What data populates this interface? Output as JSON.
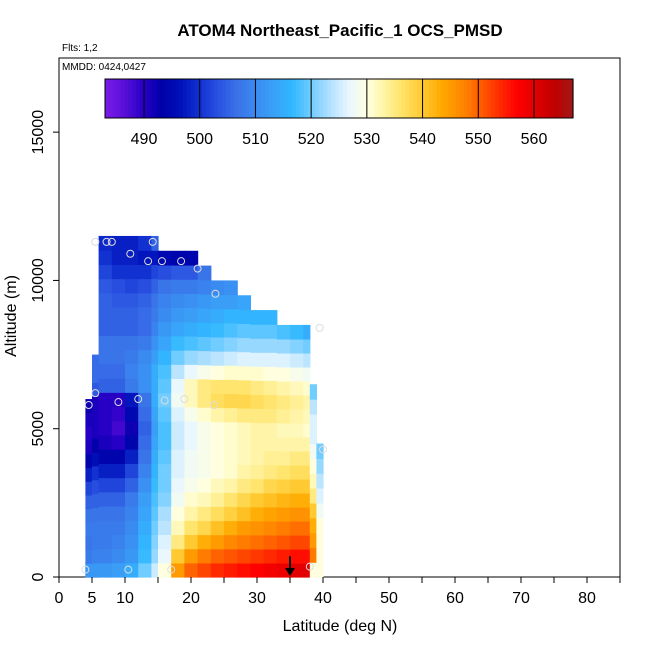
{
  "chart_data": {
    "type": "heatmap",
    "title": "ATOM4 Northeast_Pacific_1 OCS_PMSD",
    "flights_label": "Flts: 1,2",
    "mmdd_label": "MMDD: 0424,0427",
    "xlabel": "Latitude (deg N)",
    "ylabel": "Altitude (m)",
    "xlim": [
      0,
      85
    ],
    "ylim": [
      0,
      17500
    ],
    "x_ticks": [
      0,
      5,
      10,
      20,
      30,
      40,
      50,
      60,
      70,
      80
    ],
    "y_ticks": [
      0,
      5000,
      10000,
      15000
    ],
    "colorbar": {
      "range": [
        483,
        567
      ],
      "ticks": [
        490,
        500,
        510,
        520,
        530,
        540,
        550,
        560
      ],
      "colors": [
        "#7b1be8",
        "#5a10d8",
        "#2a00c8",
        "#0000a8",
        "#0010b8",
        "#1030d0",
        "#2850e0",
        "#3a70e8",
        "#3a8af0",
        "#3aa0f8",
        "#30b8ff",
        "#70ccff",
        "#b0e0ff",
        "#e8f6ff",
        "#ffffe0",
        "#fff3a0",
        "#ffe060",
        "#ffc830",
        "#ffa800",
        "#ff8a00",
        "#ff6000",
        "#ff3000",
        "#ff0000",
        "#e00000",
        "#c00000",
        "#a01818"
      ]
    },
    "grid_columns": [
      {
        "x0": 4,
        "x1": 6,
        "top": 500,
        "vals": [
          508
        ]
      },
      {
        "x0": 4,
        "x1": 5,
        "top": 6000,
        "vals": [
          512,
          508,
          507,
          508,
          507,
          505,
          502,
          498,
          494,
          491,
          490,
          491,
          492
        ]
      },
      {
        "x0": 5,
        "x1": 6,
        "top": 7500,
        "vals": [
          512,
          509,
          508,
          508,
          507,
          505,
          503,
          500,
          496,
          493,
          491,
          491,
          491,
          504,
          506,
          506
        ]
      },
      {
        "x0": 6,
        "x1": 8,
        "top": 11500,
        "vals": [
          512,
          509,
          508,
          508,
          507,
          505,
          502,
          498,
          494,
          491,
          490,
          490,
          490,
          505,
          506,
          507,
          507,
          505,
          505,
          505,
          504,
          502,
          500,
          499
        ]
      },
      {
        "x0": 8,
        "x1": 10,
        "top": 11500,
        "vals": [
          513,
          510,
          509,
          508,
          507,
          505,
          502,
          498,
          494,
          490,
          488,
          489,
          490,
          505,
          506,
          507,
          507,
          505,
          505,
          504,
          503,
          500,
          498,
          498
        ]
      },
      {
        "x0": 10,
        "x1": 12,
        "top": 11500,
        "vals": [
          515,
          512,
          511,
          510,
          509,
          508,
          505,
          502,
          498,
          494,
          492,
          495,
          497,
          508,
          509,
          508,
          507,
          505,
          505,
          504,
          502,
          500,
          498,
          498
        ]
      },
      {
        "x0": 12,
        "x1": 14,
        "top": 11500,
        "vals": [
          520,
          517,
          516,
          515,
          514,
          513,
          511,
          509,
          507,
          506,
          505,
          506,
          507,
          511,
          511,
          510,
          508,
          506,
          506,
          505,
          503,
          500,
          497,
          500
        ]
      },
      {
        "x0": 14,
        "x1": 15,
        "top": 11500,
        "vals": [
          525,
          522,
          521,
          520,
          519,
          518,
          517,
          516,
          515,
          514,
          513,
          514,
          515,
          515,
          515,
          513,
          511,
          509,
          508,
          507,
          505,
          502,
          497,
          505
        ]
      },
      {
        "x0": 15,
        "x1": 17,
        "top": 11000,
        "vals": [
          530,
          527,
          526,
          524,
          523,
          521,
          520,
          520,
          519,
          518,
          518,
          519,
          520,
          519,
          518,
          516,
          514,
          512,
          510,
          509,
          507,
          503,
          495
        ]
      },
      {
        "x0": 17,
        "x1": 19,
        "top": 11000,
        "vals": [
          545,
          540,
          535,
          532,
          530,
          528,
          527,
          526,
          526,
          525,
          525,
          526,
          528,
          527,
          524,
          520,
          517,
          514,
          512,
          510,
          508,
          504,
          494
        ]
      },
      {
        "x0": 19,
        "x1": 21,
        "top": 11000,
        "vals": [
          550,
          545,
          540,
          536,
          533,
          531,
          529,
          528,
          528,
          527,
          527,
          529,
          532,
          532,
          527,
          522,
          518,
          515,
          513,
          511,
          508,
          504,
          494
        ]
      },
      {
        "x0": 21,
        "x1": 23,
        "top": 10500,
        "vals": [
          552,
          548,
          543,
          538,
          535,
          532,
          530,
          529,
          529,
          529,
          529,
          531,
          535,
          535,
          529,
          523,
          519,
          516,
          514,
          512,
          509,
          507
        ]
      },
      {
        "x0": 23,
        "x1": 25,
        "top": 10000,
        "vals": [
          554,
          550,
          545,
          541,
          537,
          534,
          532,
          530,
          530,
          530,
          530,
          533,
          537,
          536,
          530,
          524,
          520,
          517,
          515,
          513,
          510
        ]
      },
      {
        "x0": 25,
        "x1": 27,
        "top": 10000,
        "vals": [
          555,
          551,
          547,
          543,
          539,
          536,
          533,
          531,
          531,
          531,
          531,
          534,
          538,
          536,
          531,
          525,
          521,
          518,
          516,
          513,
          511
        ]
      },
      {
        "x0": 27,
        "x1": 29,
        "top": 9500,
        "vals": [
          556,
          552,
          548,
          545,
          541,
          538,
          535,
          533,
          532,
          532,
          532,
          535,
          538,
          536,
          531,
          526,
          522,
          519,
          516,
          514
        ]
      },
      {
        "x0": 29,
        "x1": 31,
        "top": 9000,
        "vals": [
          557,
          553,
          549,
          546,
          543,
          540,
          536,
          534,
          533,
          533,
          533,
          535,
          537,
          535,
          531,
          526,
          522,
          519,
          516
        ]
      },
      {
        "x0": 31,
        "x1": 33,
        "top": 9000,
        "vals": [
          558,
          554,
          550,
          547,
          544,
          541,
          538,
          535,
          534,
          533,
          533,
          535,
          536,
          534,
          530,
          526,
          522,
          519,
          516
        ]
      },
      {
        "x0": 33,
        "x1": 35,
        "top": 8500,
        "vals": [
          559,
          555,
          551,
          548,
          545,
          542,
          539,
          536,
          534,
          533,
          532,
          534,
          535,
          533,
          530,
          526,
          522,
          518
        ]
      },
      {
        "x0": 35,
        "x1": 37,
        "top": 8500,
        "vals": [
          560,
          556,
          552,
          549,
          546,
          543,
          540,
          537,
          535,
          533,
          532,
          533,
          534,
          532,
          529,
          525,
          521,
          517
        ]
      },
      {
        "x0": 37,
        "x1": 38,
        "top": 8500,
        "vals": [
          560,
          556,
          552,
          549,
          546,
          543,
          540,
          537,
          535,
          533,
          531,
          532,
          533,
          531,
          528,
          524,
          520,
          515
        ]
      },
      {
        "x0": 38,
        "x1": 39,
        "top": 6500,
        "vals": [
          530,
          548,
          545,
          543,
          540,
          535,
          532,
          530,
          528,
          526,
          526,
          524,
          520
        ]
      },
      {
        "x0": 39,
        "x1": 40,
        "top": 4500,
        "vals": [
          530,
          530,
          530,
          530,
          528,
          526,
          524,
          522,
          520
        ]
      }
    ],
    "points": [
      {
        "lat": 5.5,
        "alt": 11300
      },
      {
        "lat": 7.2,
        "alt": 11300
      },
      {
        "lat": 8.0,
        "alt": 11300
      },
      {
        "lat": 14.2,
        "alt": 11300
      },
      {
        "lat": 10.8,
        "alt": 10900
      },
      {
        "lat": 13.5,
        "alt": 10650
      },
      {
        "lat": 15.6,
        "alt": 10650
      },
      {
        "lat": 18.5,
        "alt": 10650
      },
      {
        "lat": 21.0,
        "alt": 10400
      },
      {
        "lat": 23.7,
        "alt": 9550
      },
      {
        "lat": 39.5,
        "alt": 8400
      },
      {
        "lat": 5.5,
        "alt": 6200
      },
      {
        "lat": 4.5,
        "alt": 5800
      },
      {
        "lat": 9.0,
        "alt": 5900
      },
      {
        "lat": 12.0,
        "alt": 6000
      },
      {
        "lat": 16.0,
        "alt": 5950
      },
      {
        "lat": 19.0,
        "alt": 6000
      },
      {
        "lat": 23.5,
        "alt": 5800
      },
      {
        "lat": 40.0,
        "alt": 4300
      },
      {
        "lat": 4.0,
        "alt": 250
      },
      {
        "lat": 10.5,
        "alt": 250
      },
      {
        "lat": 17.0,
        "alt": 250
      },
      {
        "lat": 38.0,
        "alt": 350
      }
    ],
    "arrow": {
      "lat": 35,
      "alt_from": 700,
      "alt_to": 0
    }
  }
}
